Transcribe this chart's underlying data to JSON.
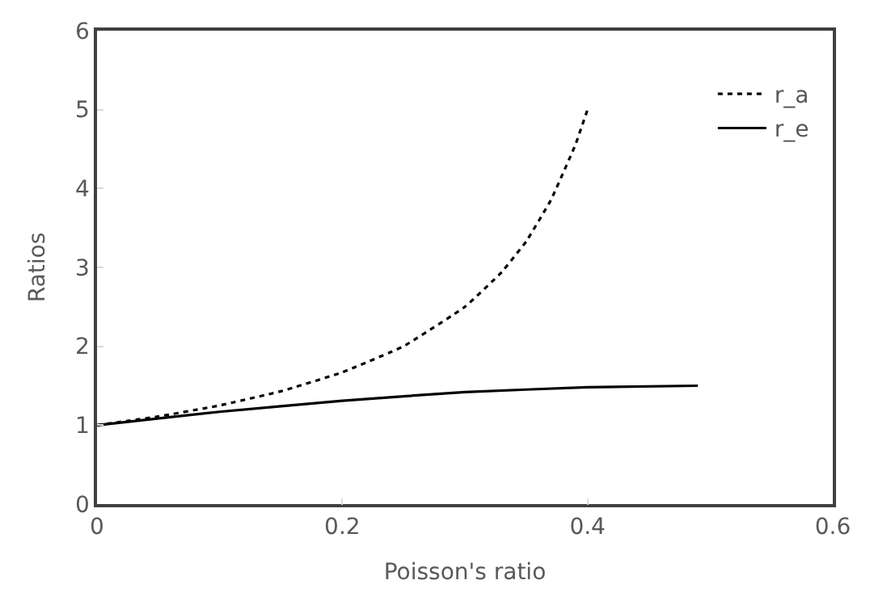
{
  "chart_data": {
    "type": "line",
    "xlabel": "Poisson's ratio",
    "ylabel": "Ratios",
    "xlim": [
      0,
      0.6
    ],
    "xticks": [
      0,
      0.2,
      0.4,
      0.6
    ],
    "ylim": [
      0,
      6
    ],
    "yticks": [
      0,
      1,
      2,
      3,
      4,
      5,
      6
    ],
    "grid": false,
    "legend": "top right",
    "marker": "none",
    "series": [
      {
        "name": "r_a",
        "color": "#000000",
        "line_style": "dotted",
        "x": [
          0,
          0.05,
          0.1,
          0.15,
          0.2,
          0.25,
          0.3,
          0.33,
          0.35,
          0.37,
          0.39,
          0.4
        ],
        "values": [
          1,
          1.11,
          1.25,
          1.43,
          1.67,
          2,
          2.5,
          2.94,
          3.33,
          3.85,
          4.55,
          5
        ]
      },
      {
        "name": "r_e",
        "color": "#000000",
        "line_style": "solid",
        "x": [
          0,
          0.1,
          0.2,
          0.3,
          0.4,
          0.49
        ],
        "values": [
          1,
          1.17,
          1.31,
          1.42,
          1.48,
          1.5
        ]
      }
    ]
  }
}
